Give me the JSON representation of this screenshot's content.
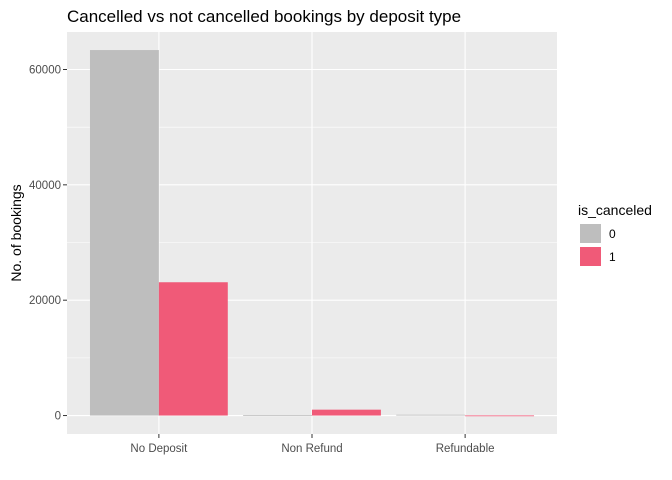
{
  "chart_data": {
    "type": "bar",
    "title": "Cancelled vs not cancelled bookings by deposit type",
    "xlabel": "",
    "ylabel": "No. of bookings",
    "categories": [
      "No Deposit",
      "Non Refund",
      "Refundable"
    ],
    "series": [
      {
        "name": "0",
        "values": [
          63371,
          93,
          142
        ],
        "color": "#bebebe"
      },
      {
        "name": "1",
        "values": [
          23112,
          1019,
          20
        ],
        "color": "#f05a78"
      }
    ],
    "ylim": [
      -3200,
      66500
    ],
    "yticks": [
      0,
      20000,
      40000,
      60000
    ],
    "ytick_labels": [
      "0",
      "20000",
      "40000",
      "60000"
    ],
    "grid": true,
    "legend": {
      "title": "is_canceled",
      "position": "right"
    },
    "panel_color": "#ebebeb",
    "grid_color": "#ffffff"
  }
}
